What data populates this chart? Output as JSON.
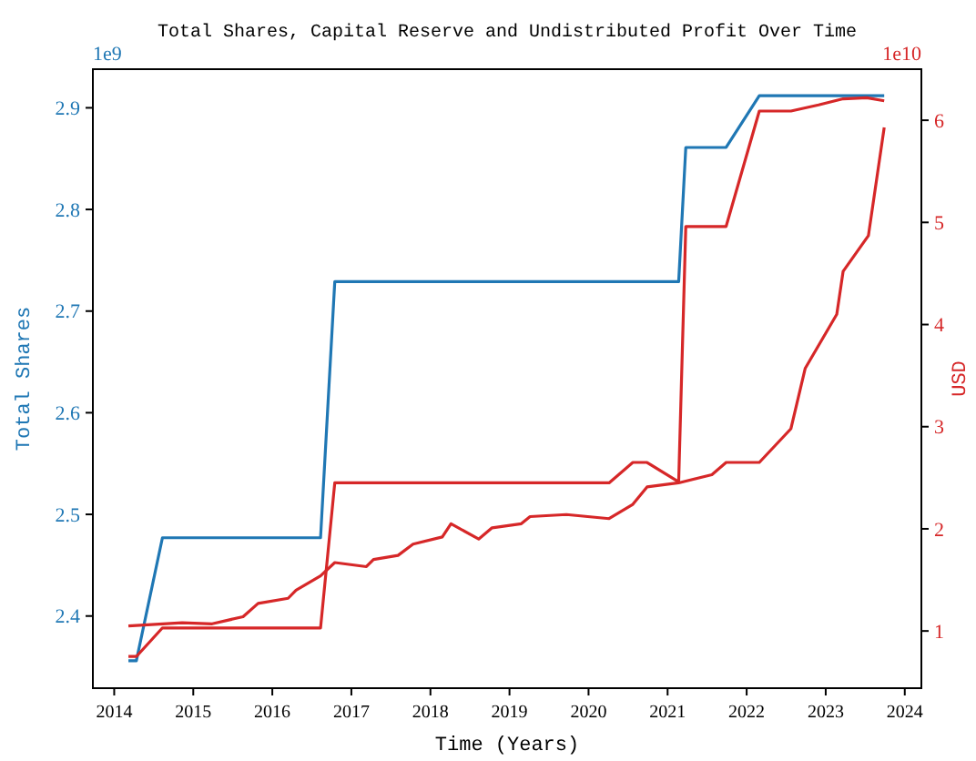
{
  "chart_data": {
    "type": "line",
    "title": "Total Shares, Capital Reserve and Undistributed Profit Over Time",
    "xlabel": "Time (Years)",
    "ylabel": "Total Shares",
    "y2label": "USD",
    "annotations": [
      "1e9",
      "1e10"
    ],
    "xlim": [
      2013.73,
      2024.21
    ],
    "xticks": [
      2014,
      2015,
      2016,
      2017,
      2018,
      2019,
      2020,
      2021,
      2022,
      2023,
      2024
    ],
    "ylim": [
      2.329,
      2.938
    ],
    "yticks": [
      2.4,
      2.5,
      2.6,
      2.7,
      2.8,
      2.9
    ],
    "y2lim": [
      0.44,
      6.5
    ],
    "y2ticks": [
      1,
      2,
      3,
      4,
      5,
      6
    ],
    "grid": false,
    "line_style": "solid",
    "marker": "none",
    "series": [
      {
        "color": "#1f77b4",
        "axis": "y",
        "x": [
          2014.18,
          2014.28,
          2014.61,
          2016.61,
          2016.79,
          2021.14,
          2021.23,
          2021.74,
          2022.16,
          2023.74
        ],
        "values": [
          2.356,
          2.356,
          2.477,
          2.477,
          2.729,
          2.729,
          2.861,
          2.861,
          2.912,
          2.912
        ]
      },
      {
        "color": "#d62728",
        "axis": "y2",
        "x": [
          2014.18,
          2014.28,
          2014.61,
          2016.61,
          2016.79,
          2020.26,
          2020.56,
          2020.74,
          2021.14,
          2021.23,
          2021.74,
          2022.16,
          2022.56,
          2022.91,
          2023.22,
          2023.52,
          2023.74
        ],
        "values": [
          0.75,
          0.75,
          1.03,
          1.03,
          2.45,
          2.45,
          2.65,
          2.65,
          2.46,
          4.96,
          4.96,
          6.09,
          6.09,
          6.15,
          6.21,
          6.22,
          6.19
        ]
      },
      {
        "color": "#d62728",
        "axis": "y2",
        "x": [
          2014.18,
          2014.86,
          2015.24,
          2015.63,
          2015.82,
          2016.2,
          2016.3,
          2016.61,
          2016.79,
          2017.19,
          2017.28,
          2017.59,
          2017.78,
          2018.15,
          2018.26,
          2018.61,
          2018.78,
          2019.15,
          2019.26,
          2019.72,
          2020.26,
          2020.56,
          2020.74,
          2021.14,
          2021.56,
          2021.74,
          2022.16,
          2022.56,
          2022.74,
          2023.14,
          2023.22,
          2023.54,
          2023.74
        ],
        "values": [
          1.05,
          1.08,
          1.07,
          1.14,
          1.27,
          1.32,
          1.4,
          1.54,
          1.67,
          1.63,
          1.7,
          1.74,
          1.85,
          1.92,
          2.05,
          1.9,
          2.01,
          2.05,
          2.12,
          2.14,
          2.1,
          2.24,
          2.41,
          2.45,
          2.53,
          2.65,
          2.65,
          2.98,
          3.57,
          4.1,
          4.52,
          4.87,
          5.93
        ]
      }
    ]
  }
}
